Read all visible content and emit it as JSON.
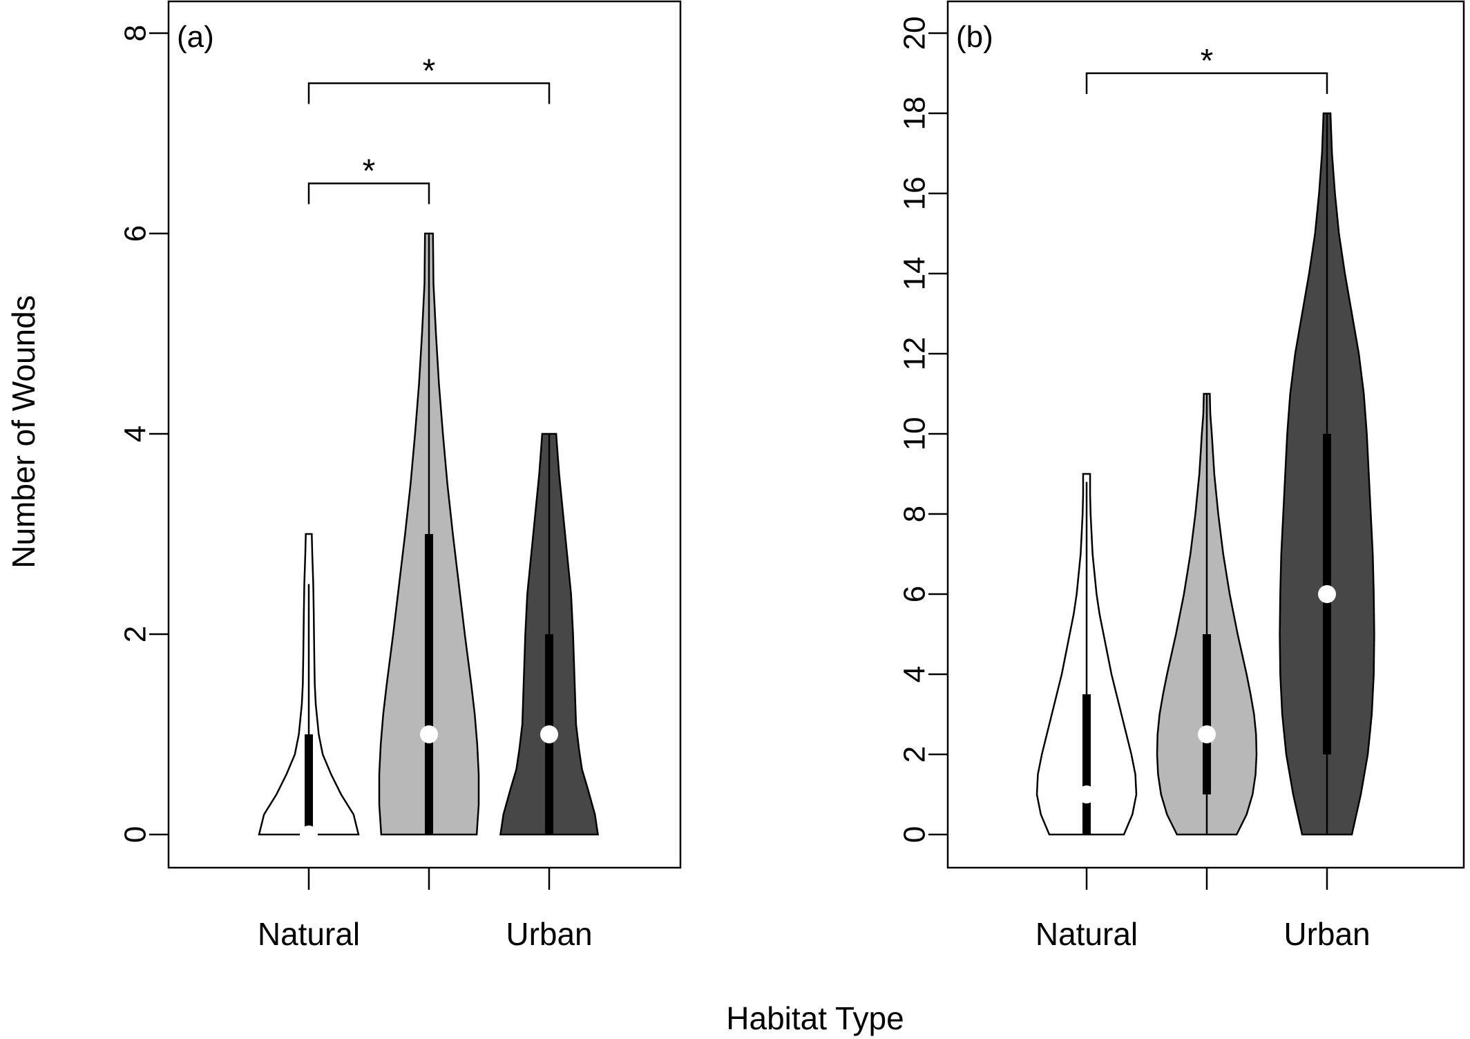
{
  "figure": {
    "ylabel": "Number of Wounds",
    "xlabel": "Habitat Type"
  },
  "chart_data": [
    {
      "type": "violin",
      "panel_label": "(a)",
      "ylim": [
        0,
        8
      ],
      "yticks": [
        "0",
        "2",
        "4",
        "6",
        "8"
      ],
      "categories": [
        "Natural",
        "",
        "Urban"
      ],
      "colors": [
        "#ffffff",
        "#b8b8b8",
        "#474747"
      ],
      "series": [
        {
          "min": 0,
          "q1": 0,
          "median": 0,
          "q3": 1,
          "whisker_max": 2.5,
          "max": 3,
          "density": [
            [
              0,
              1.0
            ],
            [
              0.2,
              0.9
            ],
            [
              0.4,
              0.65
            ],
            [
              0.6,
              0.45
            ],
            [
              0.8,
              0.28
            ],
            [
              1.0,
              0.2
            ],
            [
              1.3,
              0.14
            ],
            [
              1.5,
              0.12
            ],
            [
              1.8,
              0.11
            ],
            [
              2.2,
              0.1
            ],
            [
              2.5,
              0.09
            ],
            [
              2.8,
              0.07
            ],
            [
              3.0,
              0.06
            ]
          ]
        },
        {
          "min": 0,
          "q1": 0,
          "median": 1,
          "q3": 3,
          "whisker_max": 6,
          "max": 6,
          "density": [
            [
              0,
              0.96
            ],
            [
              0.3,
              1.0
            ],
            [
              0.6,
              1.0
            ],
            [
              0.9,
              0.97
            ],
            [
              1.2,
              0.92
            ],
            [
              1.5,
              0.85
            ],
            [
              2.0,
              0.72
            ],
            [
              2.5,
              0.6
            ],
            [
              3.0,
              0.48
            ],
            [
              3.5,
              0.37
            ],
            [
              4.0,
              0.28
            ],
            [
              4.5,
              0.2
            ],
            [
              5.0,
              0.14
            ],
            [
              5.5,
              0.09
            ],
            [
              6.0,
              0.08
            ]
          ]
        },
        {
          "min": 0,
          "q1": 0,
          "median": 1,
          "q3": 2,
          "whisker_max": 4,
          "max": 4,
          "density": [
            [
              0,
              0.98
            ],
            [
              0.2,
              0.92
            ],
            [
              0.45,
              0.78
            ],
            [
              0.65,
              0.66
            ],
            [
              0.85,
              0.6
            ],
            [
              1.1,
              0.54
            ],
            [
              1.4,
              0.52
            ],
            [
              1.7,
              0.5
            ],
            [
              2.0,
              0.48
            ],
            [
              2.4,
              0.44
            ],
            [
              2.8,
              0.36
            ],
            [
              3.2,
              0.28
            ],
            [
              3.6,
              0.2
            ],
            [
              4.0,
              0.14
            ]
          ]
        }
      ],
      "significance": [
        {
          "from": 0,
          "to": 1,
          "y": 6.5,
          "label": "*"
        },
        {
          "from": 0,
          "to": 2,
          "y": 7.5,
          "label": "*"
        }
      ]
    },
    {
      "type": "violin",
      "panel_label": "(b)",
      "ylim": [
        0,
        20
      ],
      "yticks": [
        "0",
        "2",
        "4",
        "6",
        "8",
        "10",
        "12",
        "14",
        "16",
        "18",
        "20"
      ],
      "categories": [
        "Natural",
        "",
        "Urban"
      ],
      "colors": [
        "#ffffff",
        "#b8b8b8",
        "#474747"
      ],
      "series": [
        {
          "min": 0,
          "q1": 0,
          "median": 1,
          "q3": 3.5,
          "whisker_max": 8.8,
          "max": 9,
          "density": [
            [
              0,
              0.75
            ],
            [
              0.5,
              0.92
            ],
            [
              1.0,
              1.0
            ],
            [
              1.5,
              0.98
            ],
            [
              2.0,
              0.9
            ],
            [
              2.5,
              0.8
            ],
            [
              3.0,
              0.7
            ],
            [
              3.5,
              0.6
            ],
            [
              4.0,
              0.5
            ],
            [
              4.5,
              0.42
            ],
            [
              5.0,
              0.34
            ],
            [
              5.5,
              0.26
            ],
            [
              6.0,
              0.2
            ],
            [
              7.0,
              0.12
            ],
            [
              8.0,
              0.08
            ],
            [
              8.5,
              0.07
            ],
            [
              9.0,
              0.07
            ]
          ]
        },
        {
          "min": 0,
          "q1": 1,
          "median": 2.5,
          "q3": 5,
          "whisker_max": 11,
          "max": 11,
          "density": [
            [
              0,
              0.6
            ],
            [
              0.5,
              0.8
            ],
            [
              1.0,
              0.92
            ],
            [
              1.5,
              0.98
            ],
            [
              2.0,
              1.0
            ],
            [
              2.5,
              0.99
            ],
            [
              3.0,
              0.95
            ],
            [
              3.5,
              0.88
            ],
            [
              4.0,
              0.8
            ],
            [
              5.0,
              0.62
            ],
            [
              6.0,
              0.46
            ],
            [
              7.0,
              0.33
            ],
            [
              8.0,
              0.23
            ],
            [
              9.0,
              0.15
            ],
            [
              10.0,
              0.1
            ],
            [
              10.5,
              0.07
            ],
            [
              11.0,
              0.06
            ]
          ]
        },
        {
          "min": 0,
          "q1": 2,
          "median": 6,
          "q3": 10,
          "whisker_max": 18,
          "max": 18,
          "density": [
            [
              0,
              0.5
            ],
            [
              1.0,
              0.68
            ],
            [
              2.0,
              0.82
            ],
            [
              3.0,
              0.9
            ],
            [
              4.0,
              0.94
            ],
            [
              5.0,
              0.95
            ],
            [
              6.0,
              0.94
            ],
            [
              7.0,
              0.92
            ],
            [
              8.0,
              0.88
            ],
            [
              9.0,
              0.84
            ],
            [
              10.0,
              0.8
            ],
            [
              11.0,
              0.74
            ],
            [
              12.0,
              0.64
            ],
            [
              13.0,
              0.5
            ],
            [
              14.0,
              0.36
            ],
            [
              15.0,
              0.24
            ],
            [
              16.0,
              0.16
            ],
            [
              17.0,
              0.1
            ],
            [
              18.0,
              0.07
            ]
          ]
        }
      ],
      "significance": [
        {
          "from": 0,
          "to": 2,
          "y": 19.0,
          "label": "*"
        }
      ]
    }
  ]
}
